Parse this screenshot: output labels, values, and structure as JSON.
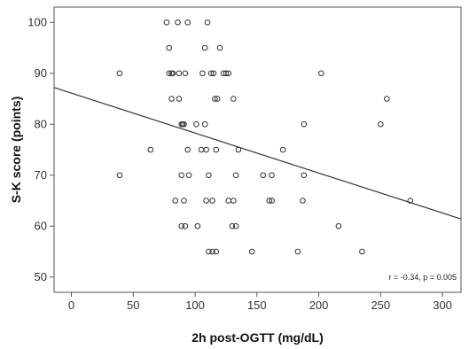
{
  "chart_data": {
    "type": "scatter",
    "xlabel": "2h post-OGTT (mg/dL)",
    "ylabel": "S-K score (points)",
    "xlim": [
      -14,
      315
    ],
    "ylim": [
      47,
      103
    ],
    "xticks": [
      0,
      50,
      100,
      150,
      200,
      250,
      300
    ],
    "yticks": [
      50,
      60,
      70,
      80,
      90,
      100
    ],
    "grid": false,
    "annotation": "r = -0.34, p = 0.005",
    "marker": "open-circle",
    "colors": {
      "marker": "#333333",
      "line": "#333333",
      "frame": "#555555"
    },
    "regression_line": {
      "x": [
        -14,
        315
      ],
      "y": [
        87.2,
        61.4
      ]
    },
    "series": [
      {
        "points": [
          [
            77,
            100
          ],
          [
            86,
            100
          ],
          [
            94,
            100
          ],
          [
            110,
            100
          ],
          [
            79,
            95
          ],
          [
            108,
            95
          ],
          [
            120,
            95
          ],
          [
            39,
            90
          ],
          [
            79,
            90
          ],
          [
            81,
            90
          ],
          [
            82,
            90
          ],
          [
            87,
            90
          ],
          [
            92,
            90
          ],
          [
            106,
            90
          ],
          [
            113,
            90
          ],
          [
            115,
            90
          ],
          [
            123,
            90
          ],
          [
            125,
            90
          ],
          [
            127,
            90
          ],
          [
            202,
            90
          ],
          [
            81,
            85
          ],
          [
            87,
            85
          ],
          [
            116,
            85
          ],
          [
            118,
            85
          ],
          [
            131,
            85
          ],
          [
            255,
            85
          ],
          [
            89,
            80
          ],
          [
            90,
            80
          ],
          [
            91,
            80
          ],
          [
            101,
            80
          ],
          [
            108,
            80
          ],
          [
            188,
            80
          ],
          [
            250,
            80
          ],
          [
            64,
            75
          ],
          [
            94,
            75
          ],
          [
            105,
            75
          ],
          [
            109,
            75
          ],
          [
            117,
            75
          ],
          [
            135,
            75
          ],
          [
            171,
            75
          ],
          [
            39,
            70
          ],
          [
            89,
            70
          ],
          [
            95,
            70
          ],
          [
            111,
            70
          ],
          [
            133,
            70
          ],
          [
            155,
            70
          ],
          [
            162,
            70
          ],
          [
            188,
            70
          ],
          [
            84,
            65
          ],
          [
            91,
            65
          ],
          [
            109,
            65
          ],
          [
            114,
            65
          ],
          [
            127,
            65
          ],
          [
            131,
            65
          ],
          [
            160,
            65
          ],
          [
            162,
            65
          ],
          [
            187,
            65
          ],
          [
            274,
            65
          ],
          [
            89,
            60
          ],
          [
            92,
            60
          ],
          [
            102,
            60
          ],
          [
            130,
            60
          ],
          [
            133,
            60
          ],
          [
            216,
            60
          ],
          [
            111,
            55
          ],
          [
            114,
            55
          ],
          [
            117,
            55
          ],
          [
            146,
            55
          ],
          [
            183,
            55
          ],
          [
            235,
            55
          ]
        ]
      }
    ]
  }
}
